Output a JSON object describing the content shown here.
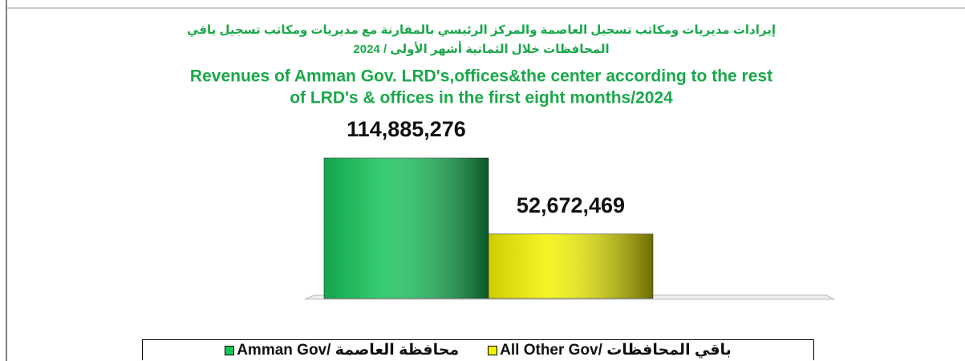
{
  "chart_data": {
    "type": "bar",
    "title": [
      "إيرادات مديريات ومكاتب تسجيل العاصمة والمركز الرئيسي بالمقارنة مع مديريات ومكاتب تسجيل باقي",
      "المحافظات خلال الثمانية أشهر الأولى / 2024"
    ],
    "subtitle": [
      "Revenues of Amman Gov. LRD's,offices&the center according to the rest",
      "of LRD's & offices in the first eight  months/2024"
    ],
    "series": [
      {
        "name": "Amman Gov/ محافظة العاصمة",
        "color": "#16c45a",
        "values": [
          114885276
        ],
        "value_labels": [
          "114,885,276"
        ]
      },
      {
        "name": "All Other Gov/ باقي المحافظات",
        "color": "#f2f200",
        "values": [
          52672469
        ],
        "value_labels": [
          "52,672,469"
        ]
      }
    ],
    "legend": "bottom"
  }
}
